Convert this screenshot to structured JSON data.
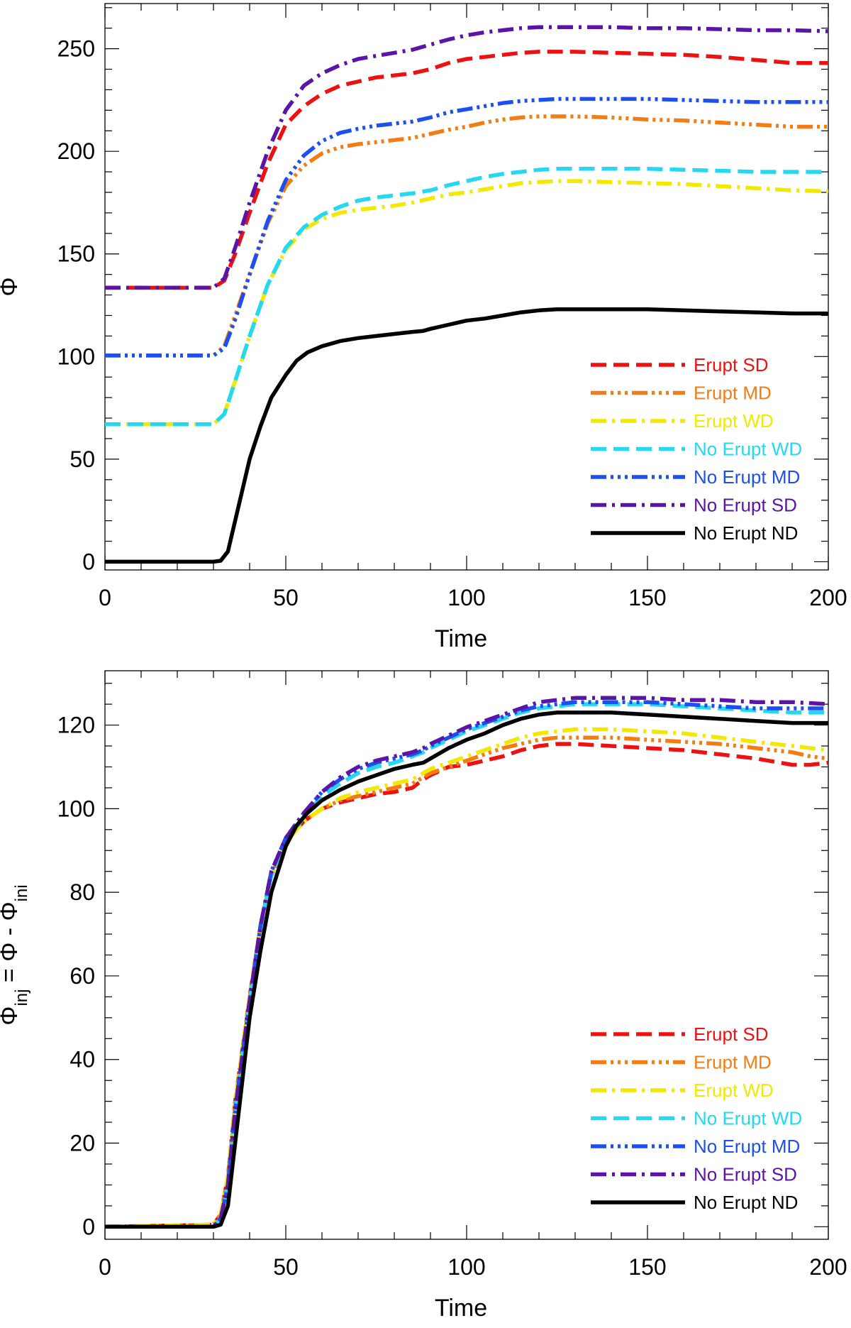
{
  "chart_data": [
    {
      "type": "line",
      "title": "",
      "xlabel": "Time",
      "ylabel": "Φ",
      "xlim": [
        0,
        200
      ],
      "ylim": [
        -4,
        272
      ],
      "xticks": [
        "0",
        "50",
        "100",
        "150",
        "200"
      ],
      "yticks": [
        "0",
        "50",
        "100",
        "150",
        "200",
        "250"
      ],
      "legend_position": "bottom-right",
      "series": [
        {
          "name": "Erupt SD",
          "color": "#ee1111",
          "dash": "dash",
          "x": [
            0,
            30,
            33,
            36,
            40,
            45,
            50,
            55,
            60,
            65,
            70,
            75,
            80,
            85,
            90,
            95,
            100,
            105,
            110,
            115,
            120,
            125,
            130,
            140,
            150,
            160,
            170,
            180,
            190,
            200
          ],
          "y": [
            133.5,
            133.5,
            137,
            150,
            170,
            194,
            213,
            222,
            228,
            232,
            234,
            236,
            237,
            238,
            240,
            243,
            245,
            246,
            247,
            248,
            248.5,
            248.5,
            248.5,
            248,
            247.5,
            247,
            246,
            244.5,
            243,
            243
          ]
        },
        {
          "name": "Erupt MD",
          "color": "#f47c14",
          "dash": "dashdotdotdot",
          "x": [
            0,
            30,
            33,
            36,
            40,
            45,
            50,
            55,
            60,
            65,
            70,
            75,
            80,
            85,
            90,
            95,
            100,
            105,
            110,
            115,
            120,
            125,
            130,
            140,
            150,
            160,
            170,
            180,
            190,
            200
          ],
          "y": [
            100.5,
            100.5,
            105,
            120,
            140,
            165,
            183,
            193,
            199,
            202,
            203.5,
            204.5,
            205.5,
            206.5,
            208.5,
            210.5,
            212,
            214,
            215.5,
            216.5,
            217,
            217,
            217,
            216.5,
            215.5,
            215,
            214,
            213,
            212,
            212
          ]
        },
        {
          "name": "Erupt WD",
          "color": "#f2e800",
          "dash": "dashdot",
          "x": [
            0,
            30,
            33,
            36,
            40,
            45,
            50,
            55,
            60,
            65,
            70,
            75,
            80,
            85,
            90,
            95,
            100,
            105,
            110,
            115,
            120,
            125,
            130,
            140,
            150,
            160,
            170,
            180,
            190,
            200
          ],
          "y": [
            67,
            67,
            72,
            88,
            110,
            135,
            152,
            162,
            167,
            170,
            171.5,
            172.5,
            173.5,
            175,
            177,
            179,
            180,
            181.5,
            183,
            184.5,
            185,
            185.5,
            185.5,
            185,
            184.5,
            184,
            183,
            182,
            181,
            180.5
          ]
        },
        {
          "name": "No Erupt WD",
          "color": "#22d8f2",
          "dash": "dash",
          "x": [
            0,
            30,
            33,
            36,
            40,
            45,
            50,
            55,
            60,
            65,
            70,
            75,
            80,
            85,
            90,
            95,
            100,
            105,
            110,
            115,
            120,
            125,
            130,
            140,
            150,
            160,
            170,
            180,
            190,
            200
          ],
          "y": [
            67,
            67,
            72,
            88,
            110,
            135,
            153,
            163,
            169,
            173,
            176,
            177.5,
            178.5,
            179.5,
            181,
            183.5,
            185.5,
            187.5,
            189,
            190,
            191,
            191.5,
            191.5,
            191.5,
            191.5,
            191,
            190.5,
            190,
            190,
            190
          ]
        },
        {
          "name": "No Erupt MD",
          "color": "#1c4ef0",
          "dash": "dashdotdotdot",
          "x": [
            0,
            30,
            33,
            36,
            40,
            45,
            50,
            55,
            60,
            65,
            70,
            75,
            80,
            85,
            90,
            95,
            100,
            105,
            110,
            115,
            120,
            125,
            130,
            140,
            150,
            160,
            170,
            180,
            190,
            200
          ],
          "y": [
            100.5,
            100.5,
            104,
            118,
            140,
            166,
            186,
            198,
            205,
            209,
            211,
            212.5,
            213.5,
            214.5,
            216.5,
            219,
            220.5,
            222,
            223.5,
            224.5,
            225,
            225.5,
            225.5,
            225.5,
            225.5,
            225,
            224.5,
            224,
            224,
            224
          ]
        },
        {
          "name": "No Erupt SD",
          "color": "#5a14a8",
          "dash": "dashdot",
          "x": [
            0,
            30,
            33,
            36,
            40,
            45,
            50,
            55,
            60,
            65,
            70,
            75,
            80,
            85,
            90,
            95,
            100,
            105,
            110,
            115,
            120,
            125,
            130,
            140,
            150,
            160,
            170,
            180,
            190,
            200
          ],
          "y": [
            133.5,
            133.5,
            138,
            153,
            175,
            200,
            220,
            232,
            238,
            242,
            245,
            246.5,
            248,
            249.5,
            252,
            254.5,
            256.5,
            258,
            259,
            260,
            260.5,
            260.5,
            260.5,
            260.5,
            260,
            260,
            259.5,
            259,
            259,
            258.5
          ]
        },
        {
          "name": "No Erupt ND",
          "color": "#000000",
          "dash": "solid",
          "x": [
            0,
            30,
            32,
            34,
            36,
            38,
            40,
            43,
            46,
            50,
            53,
            56,
            60,
            65,
            70,
            75,
            80,
            85,
            88,
            90,
            95,
            100,
            105,
            110,
            115,
            120,
            125,
            130,
            140,
            150,
            160,
            170,
            180,
            190,
            200
          ],
          "y": [
            0,
            0,
            0.5,
            5,
            20,
            35,
            50,
            66,
            80,
            91,
            98,
            102,
            105,
            107.5,
            109,
            110,
            111,
            112,
            112.5,
            113.5,
            115.5,
            117.5,
            118.5,
            120,
            121.5,
            122.5,
            123,
            123,
            123,
            123,
            122.5,
            122,
            121.5,
            121,
            121
          ]
        }
      ]
    },
    {
      "type": "line",
      "title": "",
      "xlabel": "Time",
      "ylabel": "Φinj = Φ - Φini",
      "ylabel_parts": [
        "Φ",
        "inj",
        " = Φ - Φ",
        "ini"
      ],
      "xlim": [
        0,
        200
      ],
      "ylim": [
        -3,
        133
      ],
      "xticks": [
        "0",
        "50",
        "100",
        "150",
        "200"
      ],
      "yticks": [
        "0",
        "20",
        "40",
        "60",
        "80",
        "100",
        "120"
      ],
      "legend_position": "bottom-right",
      "series": [
        {
          "name": "Erupt SD",
          "color": "#ee1111",
          "dash": "dash",
          "x": [
            0,
            30,
            32,
            34,
            36,
            40,
            43,
            46,
            50,
            55,
            60,
            65,
            70,
            75,
            80,
            85,
            88,
            90,
            95,
            100,
            105,
            110,
            115,
            120,
            125,
            130,
            140,
            150,
            160,
            170,
            180,
            190,
            195,
            200
          ],
          "y": [
            0,
            0.5,
            3,
            12,
            30,
            55,
            72,
            84,
            92,
            97,
            100,
            101.5,
            102.5,
            103.5,
            104,
            105,
            107,
            108,
            110,
            110.5,
            111.5,
            112.5,
            114,
            115,
            115.5,
            115.5,
            115,
            114.5,
            114,
            113,
            112,
            110.5,
            110.5,
            111
          ]
        },
        {
          "name": "Erupt MD",
          "color": "#f47c14",
          "dash": "dashdotdotdot",
          "x": [
            0,
            30,
            32,
            34,
            36,
            40,
            43,
            46,
            50,
            55,
            60,
            65,
            70,
            75,
            80,
            85,
            88,
            90,
            95,
            100,
            105,
            110,
            115,
            120,
            125,
            130,
            140,
            150,
            160,
            170,
            180,
            190,
            195,
            200
          ],
          "y": [
            0,
            0.5,
            3,
            12,
            30,
            55,
            72,
            84,
            92,
            97,
            100,
            102,
            103,
            104,
            105,
            106,
            107.5,
            108.5,
            110,
            111.5,
            113,
            114.5,
            115.5,
            116.5,
            117,
            117,
            117,
            116.5,
            116,
            115.5,
            114.5,
            113.5,
            112.5,
            112
          ]
        },
        {
          "name": "Erupt WD",
          "color": "#f2e800",
          "dash": "dashdot",
          "x": [
            0,
            30,
            32,
            34,
            36,
            40,
            43,
            46,
            50,
            55,
            60,
            65,
            70,
            75,
            80,
            85,
            88,
            90,
            95,
            100,
            105,
            110,
            115,
            120,
            125,
            130,
            140,
            150,
            160,
            170,
            180,
            190,
            200
          ],
          "y": [
            0,
            0.5,
            3,
            12,
            30,
            55,
            72,
            84,
            92,
            97,
            100,
            102.5,
            104,
            105,
            106,
            107,
            108.5,
            109.5,
            111,
            112.5,
            114,
            115.5,
            117,
            118,
            118.5,
            119,
            119,
            118.5,
            118,
            117,
            116,
            115,
            114
          ]
        },
        {
          "name": "No Erupt WD",
          "color": "#22d8f2",
          "dash": "dash",
          "x": [
            0,
            30,
            32,
            34,
            36,
            40,
            43,
            46,
            50,
            55,
            60,
            65,
            70,
            75,
            80,
            85,
            88,
            90,
            95,
            100,
            105,
            110,
            115,
            120,
            125,
            130,
            140,
            150,
            160,
            170,
            180,
            190,
            200
          ],
          "y": [
            0,
            0,
            2,
            10,
            28,
            54,
            71,
            84,
            92,
            98,
            103,
            106,
            108.5,
            110,
            111,
            112.5,
            113.5,
            114.5,
            116.5,
            118.5,
            120,
            121.5,
            123,
            124,
            124.5,
            125,
            125,
            125,
            124.5,
            124,
            123.5,
            123,
            123
          ]
        },
        {
          "name": "No Erupt MD",
          "color": "#1c4ef0",
          "dash": "dashdotdotdot",
          "x": [
            0,
            30,
            32,
            34,
            36,
            40,
            43,
            46,
            50,
            55,
            60,
            65,
            70,
            75,
            80,
            85,
            88,
            90,
            95,
            100,
            105,
            110,
            115,
            120,
            125,
            130,
            140,
            150,
            160,
            170,
            180,
            190,
            200
          ],
          "y": [
            0,
            0,
            2,
            10,
            28,
            54,
            72,
            85,
            93,
            99,
            104,
            107,
            109.5,
            111,
            112,
            113,
            114,
            115,
            117,
            119,
            120.5,
            122,
            123.5,
            124.5,
            125,
            125.5,
            125.5,
            125.5,
            125,
            124.5,
            124,
            124,
            124
          ]
        },
        {
          "name": "No Erupt SD",
          "color": "#5a14a8",
          "dash": "dashdot",
          "x": [
            0,
            30,
            32,
            34,
            36,
            40,
            43,
            46,
            50,
            55,
            60,
            65,
            70,
            75,
            80,
            85,
            88,
            90,
            95,
            100,
            105,
            110,
            115,
            120,
            125,
            130,
            140,
            150,
            160,
            170,
            180,
            190,
            200
          ],
          "y": [
            0,
            0,
            2,
            10,
            28,
            54,
            72,
            85,
            93,
            99,
            104,
            107.5,
            110,
            111.5,
            112.5,
            113.5,
            114.5,
            115.5,
            117.5,
            119.5,
            121,
            122.5,
            124,
            125.5,
            126,
            126.5,
            126.5,
            126.5,
            126,
            126,
            125.5,
            125.5,
            125
          ]
        },
        {
          "name": "No Erupt ND",
          "color": "#000000",
          "dash": "solid",
          "x": [
            0,
            30,
            32,
            34,
            36,
            38,
            40,
            43,
            46,
            50,
            53,
            56,
            60,
            65,
            70,
            75,
            80,
            85,
            88,
            90,
            95,
            100,
            105,
            110,
            115,
            120,
            125,
            130,
            140,
            150,
            160,
            170,
            180,
            190,
            200
          ],
          "y": [
            0,
            0,
            0.5,
            5,
            20,
            35,
            50,
            66,
            80,
            91,
            96,
            99,
            102,
            104.5,
            106.5,
            108,
            109.5,
            110.5,
            111,
            112,
            114.5,
            116.5,
            118,
            120,
            121.5,
            122.5,
            123,
            123,
            123,
            122.5,
            122,
            121.5,
            121,
            120.5,
            120.5
          ]
        }
      ]
    }
  ]
}
